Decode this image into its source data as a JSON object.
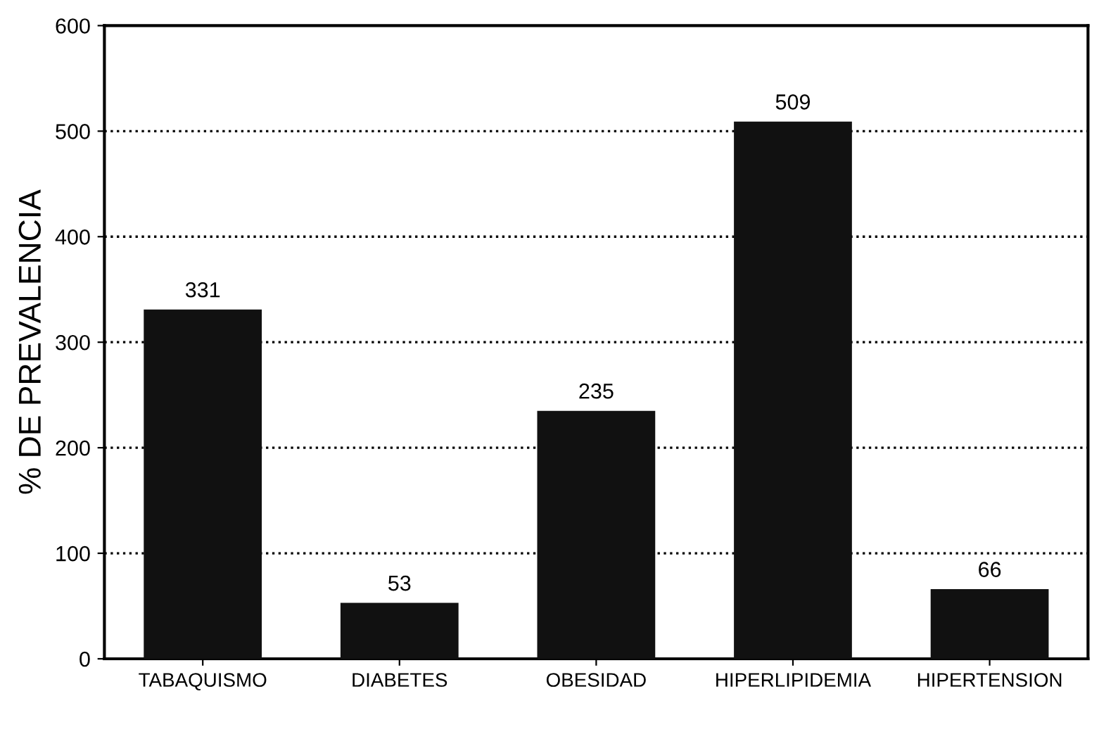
{
  "chart_data": {
    "type": "bar",
    "ylabel": "% DE PREVALENCIA",
    "categories": [
      "TABAQUISMO",
      "DIABETES",
      "OBESIDAD",
      "HIPERLIPIDEMIA",
      "HIPERTENSION"
    ],
    "values": [
      331,
      53,
      235,
      509,
      66
    ],
    "color": "#111111",
    "ylim": [
      0,
      600
    ],
    "yticks": [
      0,
      100,
      200,
      300,
      400,
      500,
      600
    ],
    "grid": "y",
    "line_style": "dotted",
    "data_labels": true
  }
}
